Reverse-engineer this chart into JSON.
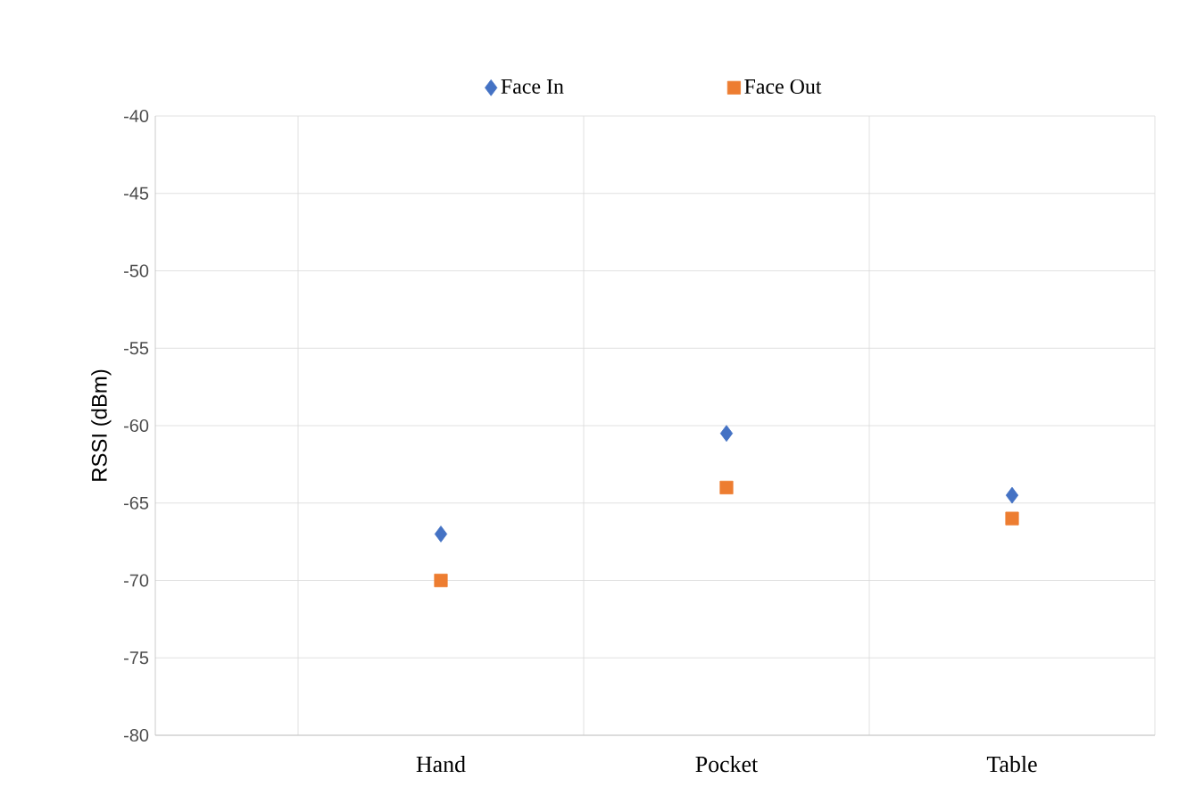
{
  "chart_data": {
    "type": "scatter",
    "ylabel": "RSSI (dBm)",
    "categories": [
      "Hand",
      "Pocket",
      "Table"
    ],
    "series": [
      {
        "name": "Face In",
        "color": "#4472c4",
        "marker": "diamond",
        "values": [
          -67,
          -60.5,
          -64.5
        ]
      },
      {
        "name": "Face Out",
        "color": "#ed7d31",
        "marker": "square",
        "values": [
          -70,
          -64,
          -66
        ]
      }
    ],
    "ylim": [
      -80,
      -40
    ],
    "yticks": [
      -80,
      -75,
      -70,
      -65,
      -60,
      -55,
      -50,
      -45,
      -40
    ],
    "grid": true,
    "legend": "top"
  }
}
